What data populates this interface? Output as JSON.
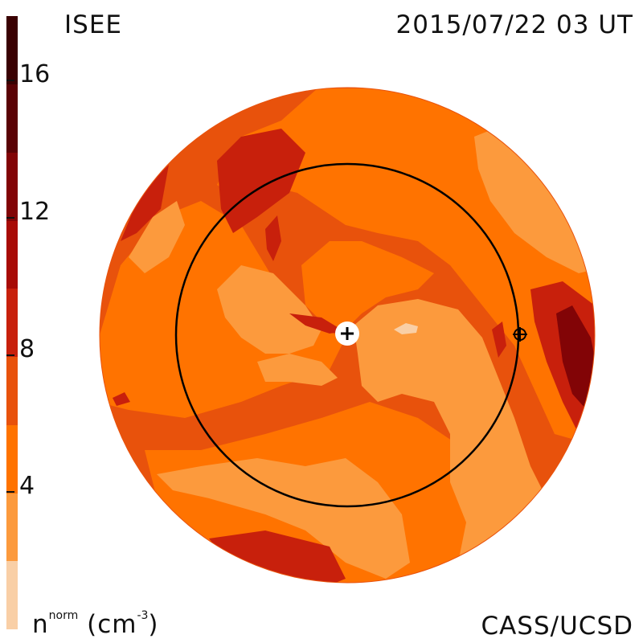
{
  "header": {
    "title": "ISEE",
    "timestamp": "2015/07/22 03 UT"
  },
  "footer": {
    "unit_label": "n",
    "unit_sup": "norm",
    "unit_text": " (cm",
    "unit_exp": "-3",
    "unit_close": ")",
    "credit": "CASS/UCSD"
  },
  "colorbar": {
    "ticks": [
      "4",
      "8",
      "12",
      "16"
    ],
    "levels": [
      {
        "min": 0,
        "max": 2,
        "color": "#f9cfa6"
      },
      {
        "min": 2,
        "max": 4,
        "color": "#fc9a3d"
      },
      {
        "min": 4,
        "max": 6,
        "color": "#ff7300"
      },
      {
        "min": 6,
        "max": 8,
        "color": "#e8520c"
      },
      {
        "min": 8,
        "max": 10,
        "color": "#c8200c"
      },
      {
        "min": 10,
        "max": 12,
        "color": "#a80b06"
      },
      {
        "min": 12,
        "max": 14,
        "color": "#820406"
      },
      {
        "min": 14,
        "max": 16,
        "color": "#5a0205"
      },
      {
        "min": 16,
        "max": 18,
        "color": "#3a0102"
      }
    ]
  },
  "map": {
    "markers": [
      {
        "name": "sun",
        "symbol": "+"
      },
      {
        "name": "earth",
        "symbol": "circle-plus"
      }
    ],
    "orbit": "Earth orbit circle"
  }
}
